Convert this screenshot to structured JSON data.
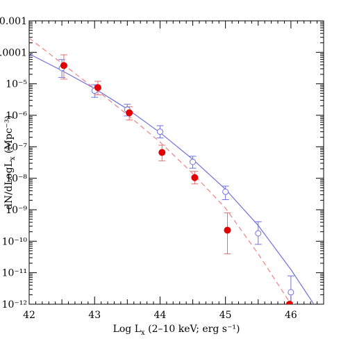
{
  "chart_data": {
    "type": "scatter",
    "xlabel": {
      "main": "Log L",
      "sub": "x",
      "rest": " (2–10 keV; erg s⁻¹)"
    },
    "ylabel": {
      "main": "dN/dLogL",
      "sub": "x",
      "rest": " (Mpc⁻³)"
    },
    "xlim": [
      42,
      46.5
    ],
    "ylim_log10": [
      -12,
      -3
    ],
    "y_scale": "log",
    "x_ticks": [
      "42",
      "43",
      "44",
      "45",
      "46"
    ],
    "y_ticks": [
      {
        "exp": -3,
        "label": "0.001"
      },
      {
        "exp": -4,
        "label": "0.0001"
      },
      {
        "exp": -5,
        "label": "10⁻⁵"
      },
      {
        "exp": -6,
        "label": "10⁻⁶"
      },
      {
        "exp": -7,
        "label": "10⁻⁷"
      },
      {
        "exp": -8,
        "label": "10⁻⁸"
      },
      {
        "exp": -9,
        "label": "10⁻⁹"
      },
      {
        "exp": -10,
        "label": "10⁻¹⁰"
      },
      {
        "exp": -11,
        "label": "10⁻¹¹"
      },
      {
        "exp": -12,
        "label": "10⁻¹²"
      }
    ],
    "series": [
      {
        "marker": "open-circle",
        "color": "#6f6fe0",
        "points": [
          {
            "x": 42.5,
            "log_y": -4.5,
            "log_lo": -4.8,
            "log_hi": -4.23
          },
          {
            "x": 43.0,
            "log_y": -5.22,
            "log_lo": -5.43,
            "log_hi": -5.03
          },
          {
            "x": 43.5,
            "log_y": -5.82,
            "log_lo": -6.02,
            "log_hi": -5.65
          },
          {
            "x": 44.0,
            "log_y": -6.52,
            "log_lo": -6.72,
            "log_hi": -6.33
          },
          {
            "x": 44.5,
            "log_y": -7.48,
            "log_lo": -7.68,
            "log_hi": -7.3
          },
          {
            "x": 45.0,
            "log_y": -8.43,
            "log_lo": -8.68,
            "log_hi": -8.25
          },
          {
            "x": 45.5,
            "log_y": -9.75,
            "log_lo": -10.1,
            "log_hi": -9.38
          },
          {
            "x": 46.0,
            "log_y": -11.62,
            "log_lo": -12.0,
            "log_hi": -11.1
          }
        ],
        "fit": {
          "style": "solid",
          "x": [
            42,
            42.5,
            43,
            43.5,
            44,
            44.5,
            45,
            45.5,
            46,
            46.35
          ],
          "log_y": [
            -4.05,
            -4.58,
            -5.15,
            -5.8,
            -6.55,
            -7.4,
            -8.35,
            -9.5,
            -10.9,
            -12.0
          ]
        }
      },
      {
        "marker": "filled-circle",
        "color": "#e00000",
        "errcolor": "#e07070",
        "points": [
          {
            "x": 42.53,
            "log_y": -4.42,
            "log_lo": -4.85,
            "log_hi": -4.08
          },
          {
            "x": 43.05,
            "log_y": -5.12,
            "log_lo": -5.35,
            "log_hi": -4.92
          },
          {
            "x": 43.53,
            "log_y": -5.92,
            "log_lo": -6.15,
            "log_hi": -5.73
          },
          {
            "x": 44.03,
            "log_y": -7.18,
            "log_lo": -7.45,
            "log_hi": -6.95
          },
          {
            "x": 44.53,
            "log_y": -7.98,
            "log_lo": -8.18,
            "log_hi": -7.78
          },
          {
            "x": 45.03,
            "log_y": -9.65,
            "log_lo": -10.4,
            "log_hi": -9.1
          },
          {
            "x": 45.98,
            "log_y": -12.0,
            "log_lo": -12.0,
            "log_hi": -11.95
          }
        ],
        "fit": {
          "style": "dashed",
          "x": [
            42,
            42.5,
            43,
            43.5,
            44,
            44.5,
            45,
            45.5,
            46.0
          ],
          "log_y": [
            -3.55,
            -4.35,
            -5.15,
            -5.98,
            -6.85,
            -7.85,
            -8.95,
            -10.4,
            -12.0
          ]
        }
      }
    ]
  }
}
